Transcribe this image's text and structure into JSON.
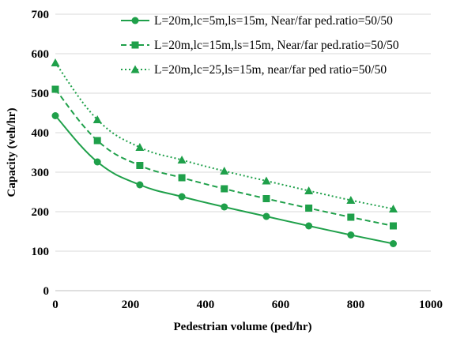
{
  "chart_data": {
    "type": "line",
    "title": "",
    "xlabel": "Pedestrian volume (ped/hr)",
    "ylabel": "Capacity (veh/hr)",
    "xlim": [
      0,
      1000
    ],
    "ylim": [
      0,
      700
    ],
    "xticks": [
      0,
      200,
      400,
      600,
      800,
      1000
    ],
    "yticks": [
      0,
      100,
      200,
      300,
      400,
      500,
      600,
      700
    ],
    "grid": "horizontal",
    "legend_position": "top-right",
    "x": [
      0,
      112,
      225,
      337,
      450,
      562,
      675,
      787,
      900
    ],
    "series": [
      {
        "name": "L=20m,lc=5m,ls=15m, Near/far ped.ratio=50/50",
        "line_style": "solid",
        "marker": "circle",
        "color": "#1fa04a",
        "values": [
          443,
          326,
          268,
          238,
          212,
          188,
          164,
          141,
          119
        ]
      },
      {
        "name": "L=20m,lc=15m,ls=15m, Near/far ped.ratio=50/50",
        "line_style": "dashed",
        "marker": "square",
        "color": "#1fa04a",
        "values": [
          510,
          380,
          317,
          286,
          258,
          233,
          209,
          186,
          164
        ]
      },
      {
        "name": "L=20m,lc=25,ls=15m, near/far ped ratio=50/50",
        "line_style": "dotted",
        "marker": "triangle",
        "color": "#1fa04a",
        "values": [
          577,
          433,
          363,
          331,
          303,
          278,
          253,
          229,
          207
        ]
      }
    ]
  }
}
